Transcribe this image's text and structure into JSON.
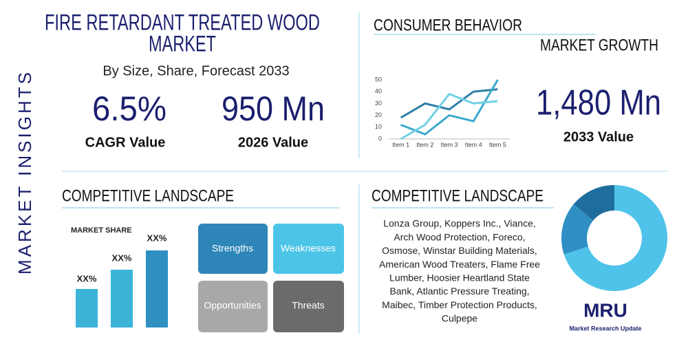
{
  "side_label": "MARKET INSIGHTS",
  "header": {
    "title_lines": [
      "FIRE RETARDANT TREATED WOOD",
      "MARKET"
    ],
    "subtitle": "By Size, Share, Forecast 2033"
  },
  "stats": [
    {
      "value": "6.5%",
      "label": "CAGR Value"
    },
    {
      "value": "950 Mn",
      "label": "2026 Value"
    }
  ],
  "consumer": {
    "title": "CONSUMER BEHAVIOR",
    "growth_title": "MARKET GROWTH",
    "value": "1,480 Mn",
    "label": "2033 Value",
    "chart": {
      "type": "line",
      "categories": [
        "Item 1",
        "Item 2",
        "Item 3",
        "Item 4",
        "Item 5"
      ],
      "series": [
        {
          "color": "#2f7fa8",
          "values": [
            18,
            30,
            25,
            40,
            42
          ]
        },
        {
          "color": "#3aa9cc",
          "values": [
            12,
            4,
            20,
            15,
            50
          ]
        },
        {
          "color": "#6fd0e6",
          "values": [
            0,
            12,
            38,
            30,
            32
          ]
        }
      ],
      "ylim": [
        0,
        50
      ],
      "yticks": [
        0,
        10,
        20,
        30,
        40,
        50
      ]
    }
  },
  "competitive_left": {
    "title": "COMPETITIVE LANDSCAPE",
    "share_title": "MARKET SHARE",
    "share_labels": [
      "XX%",
      "XX%",
      "XX%"
    ],
    "swot": [
      "Strengths",
      "Weaknesses",
      "Opportunities",
      "Threats"
    ]
  },
  "competitive_right": {
    "title": "COMPETITIVE LANDSCAPE",
    "companies": [
      "Lonza Group, Koppers Inc., Viance,",
      "Arch Wood Protection, Foreco,",
      "Osmose, Winstar Building Materials,",
      "American Wood Treaters, Flame Free",
      "Lumber, Hoosier Heartland State",
      "Bank, Atlantic Pressure Treating,",
      "Maibec, Timber Protection Products,",
      "Culpepe"
    ],
    "donut": {
      "type": "pie",
      "values": [
        70,
        16,
        14
      ],
      "colors": [
        "#4fc3ea",
        "#2f8fc4",
        "#1f6d9e"
      ]
    }
  },
  "logo": {
    "mark": "MRU",
    "name": "Market Research Update"
  }
}
